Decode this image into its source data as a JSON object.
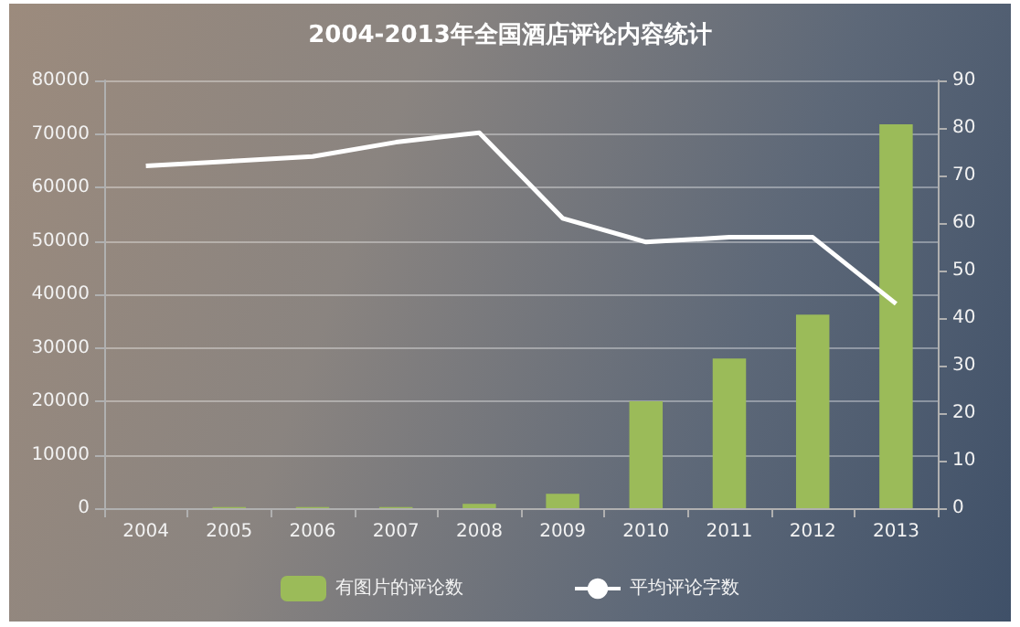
{
  "chart_data": {
    "type": "bar",
    "title": "2004-2013年全国酒店评论内容统计",
    "categories": [
      "2004",
      "2005",
      "2006",
      "2007",
      "2008",
      "2009",
      "2010",
      "2011",
      "2012",
      "2013"
    ],
    "series": [
      {
        "name": "有图片的评论数",
        "color": "#9bbb59",
        "values": [
          0,
          200,
          200,
          200,
          800,
          2700,
          20000,
          28000,
          36200,
          71800
        ]
      },
      {
        "name": "平均评论字数",
        "type": "line",
        "axis": "y2",
        "color": "#ffffff",
        "values": [
          72,
          73,
          74,
          77,
          79,
          61,
          56,
          57,
          57,
          43
        ]
      }
    ],
    "ylim": [
      0,
      80000
    ],
    "yticks": [
      0,
      10000,
      20000,
      30000,
      40000,
      50000,
      60000,
      70000,
      80000
    ],
    "y2lim": [
      0,
      90
    ],
    "y2ticks": [
      0,
      10,
      20,
      30,
      40,
      50,
      60,
      70,
      80,
      90
    ],
    "grid": "y",
    "legend": "bottom",
    "marker": "none"
  }
}
